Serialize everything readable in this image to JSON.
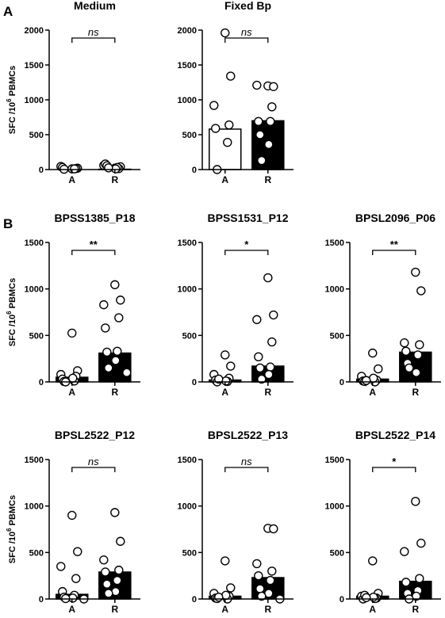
{
  "panel_labels": [
    "A",
    "B"
  ],
  "y_axis_label": {
    "main": "SFC /10",
    "sup": "6",
    "rest": " PBMCs"
  },
  "chart_data": [
    {
      "type": "bar+scatter",
      "title": "Medium",
      "categories": [
        "A",
        "R"
      ],
      "ylim": [
        0,
        2000
      ],
      "yticks": [
        0,
        500,
        1000,
        1500,
        2000
      ],
      "bars": [
        0,
        5
      ],
      "points": [
        [
          10,
          20,
          45,
          15,
          30,
          10,
          5
        ],
        [
          20,
          40,
          60,
          15,
          80,
          30,
          55,
          10,
          25
        ]
      ],
      "bar_fill": [
        "#ffffff",
        "#000000"
      ],
      "significance": "ns"
    },
    {
      "type": "bar+scatter",
      "title": "Fixed Bp",
      "categories": [
        "A",
        "R"
      ],
      "ylim": [
        0,
        2000
      ],
      "yticks": [
        0,
        500,
        1000,
        1500,
        2000
      ],
      "bars": [
        580,
        700
      ],
      "points": [
        [
          1960,
          1340,
          920,
          640,
          590,
          390,
          0
        ],
        [
          1200,
          1190,
          1210,
          900,
          690,
          690,
          500,
          360,
          130
        ]
      ],
      "bar_fill": [
        "#ffffff",
        "#000000"
      ],
      "significance": "ns"
    },
    {
      "type": "bar+scatter",
      "title": "BPSS1385_P18",
      "categories": [
        "A",
        "R"
      ],
      "ylim": [
        0,
        1500
      ],
      "yticks": [
        0,
        500,
        1000,
        1500
      ],
      "bars": [
        50,
        310
      ],
      "points": [
        [
          525,
          120,
          80,
          60,
          30,
          10,
          5,
          40,
          0
        ],
        [
          1045,
          880,
          830,
          690,
          580,
          330,
          320,
          230,
          150,
          100
        ]
      ],
      "bar_fill": [
        "#000000",
        "#000000"
      ],
      "significance": "**"
    },
    {
      "type": "bar+scatter",
      "title": "BPSS1531_P12",
      "categories": [
        "A",
        "R"
      ],
      "ylim": [
        0,
        1500
      ],
      "yticks": [
        0,
        500,
        1000,
        1500
      ],
      "bars": [
        20,
        170
      ],
      "points": [
        [
          290,
          170,
          80,
          40,
          20,
          5,
          0,
          10,
          30
        ],
        [
          1120,
          720,
          670,
          430,
          270,
          160,
          150,
          80,
          30
        ]
      ],
      "bar_fill": [
        "#000000",
        "#000000"
      ],
      "significance": "*"
    },
    {
      "type": "bar+scatter",
      "title": "BPSL2096_P06",
      "categories": [
        "A",
        "R"
      ],
      "ylim": [
        0,
        1500
      ],
      "yticks": [
        0,
        500,
        1000,
        1500
      ],
      "bars": [
        30,
        320
      ],
      "points": [
        [
          310,
          140,
          60,
          20,
          10,
          0,
          5,
          40,
          15
        ],
        [
          1180,
          980,
          420,
          400,
          330,
          290,
          200,
          100,
          150
        ]
      ],
      "bar_fill": [
        "#000000",
        "#000000"
      ],
      "significance": "**"
    },
    {
      "type": "bar+scatter",
      "title": "BPSL2522_P12",
      "categories": [
        "A",
        "R"
      ],
      "ylim": [
        0,
        1500
      ],
      "yticks": [
        0,
        500,
        1000,
        1500
      ],
      "bars": [
        50,
        290
      ],
      "points": [
        [
          900,
          510,
          350,
          220,
          80,
          40,
          20,
          10,
          5,
          0
        ],
        [
          930,
          620,
          420,
          310,
          290,
          200,
          160,
          80,
          60
        ]
      ],
      "bar_fill": [
        "#000000",
        "#000000"
      ],
      "significance": "ns"
    },
    {
      "type": "bar+scatter",
      "title": "BPSL2522_P13",
      "categories": [
        "A",
        "R"
      ],
      "ylim": [
        0,
        1500
      ],
      "yticks": [
        0,
        500,
        1000,
        1500
      ],
      "bars": [
        30,
        230
      ],
      "points": [
        [
          410,
          120,
          60,
          30,
          10,
          0,
          5,
          40,
          20
        ],
        [
          760,
          755,
          380,
          300,
          250,
          200,
          110,
          60,
          30,
          0
        ]
      ],
      "bar_fill": [
        "#000000",
        "#000000"
      ],
      "significance": "ns"
    },
    {
      "type": "bar+scatter",
      "title": "BPSL2522_P14",
      "categories": [
        "A",
        "R"
      ],
      "ylim": [
        0,
        1500
      ],
      "yticks": [
        0,
        500,
        1000,
        1500
      ],
      "bars": [
        30,
        190
      ],
      "points": [
        [
          410,
          60,
          30,
          10,
          0,
          5,
          40,
          20,
          15
        ],
        [
          1050,
          600,
          510,
          220,
          180,
          90,
          60,
          30,
          0
        ]
      ],
      "bar_fill": [
        "#000000",
        "#000000"
      ],
      "significance": "*"
    }
  ]
}
